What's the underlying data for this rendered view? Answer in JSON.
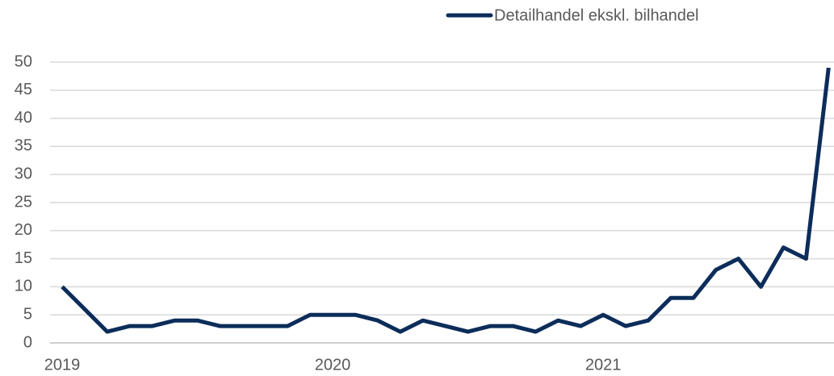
{
  "chart_data": {
    "type": "line",
    "categories": [
      "2019",
      null,
      null,
      null,
      null,
      null,
      null,
      null,
      null,
      null,
      null,
      null,
      "2020",
      null,
      null,
      null,
      null,
      null,
      null,
      null,
      null,
      null,
      null,
      null,
      "2021",
      null,
      null,
      null,
      null,
      null,
      null,
      null,
      null,
      null,
      null
    ],
    "series": [
      {
        "name": "Detailhandel ekskl. bilhandel",
        "color": "#0c2d5a",
        "values": [
          10,
          6,
          2,
          3,
          3,
          4,
          4,
          3,
          3,
          3,
          3,
          5,
          5,
          5,
          4,
          2,
          4,
          3,
          2,
          3,
          3,
          2,
          4,
          3,
          5,
          3,
          4,
          8,
          8,
          13,
          15,
          10,
          17,
          15,
          49
        ]
      }
    ],
    "ylim": [
      0,
      50
    ],
    "yticks": [
      0,
      5,
      10,
      15,
      20,
      25,
      30,
      35,
      40,
      45,
      50
    ],
    "grid": true,
    "legend": "top-right"
  }
}
